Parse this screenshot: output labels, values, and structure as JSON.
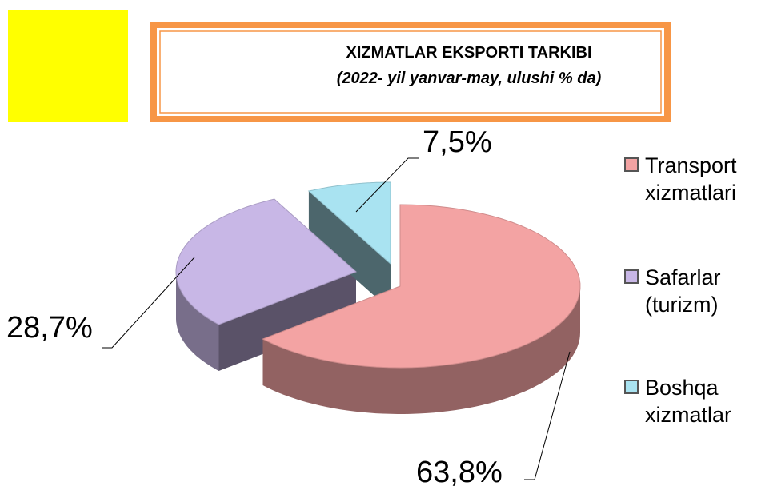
{
  "chart_data": {
    "type": "pie",
    "title": "XIZMATLAR EKSPORTI TARKIBI",
    "subtitle": "(2022- yil yanvar-may, ulushi % da)",
    "categories": [
      "Transport xizmatlari",
      "Safarlar (turizm)",
      "Boshqa xizmatlar"
    ],
    "values": [
      63.8,
      28.7,
      7.5
    ],
    "value_labels": [
      "63,8%",
      "28,7%",
      "7,5%"
    ],
    "colors": [
      "#f3a3a3",
      "#c8b7e6",
      "#a9e3f1"
    ],
    "legend": "right"
  }
}
